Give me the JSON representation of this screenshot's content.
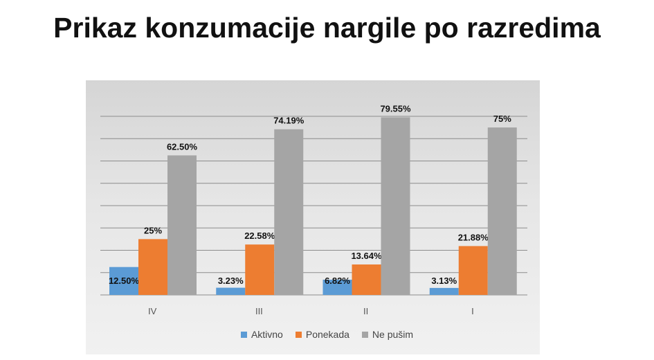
{
  "title": "Prikaz konzumacije nargile po razredima",
  "chart_data": {
    "type": "bar",
    "title": "",
    "categories": [
      "IV",
      "III",
      "II",
      "I"
    ],
    "series": [
      {
        "name": "Aktivno",
        "color": "#5b9bd5",
        "values": [
          12.5,
          3.23,
          6.82,
          3.13
        ],
        "labels": [
          "12.50%",
          "3.23%",
          "6.82%",
          "3.13%"
        ]
      },
      {
        "name": "Ponekada",
        "color": "#ed7d31",
        "values": [
          25,
          22.58,
          13.64,
          21.88
        ],
        "labels": [
          "25%",
          "22.58%",
          "13.64%",
          "21.88%"
        ]
      },
      {
        "name": "Ne pušim",
        "color": "#a5a5a5",
        "values": [
          62.5,
          74.19,
          79.55,
          75
        ],
        "labels": [
          "62.50%",
          "74.19%",
          "79.55%",
          "75%"
        ]
      }
    ],
    "ylim": [
      0,
      80
    ],
    "grid": true,
    "legend": "bottom",
    "xlabel": "",
    "ylabel": ""
  }
}
